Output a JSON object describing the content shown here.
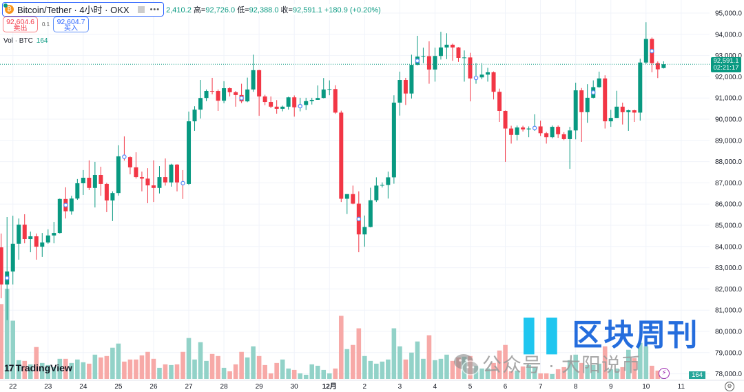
{
  "header": {
    "title": "Bitcoin/Tether · 4小时 · OKX",
    "ohlc_partial_open": "2,410.2",
    "high_label": "高=",
    "high": "92,726.0",
    "low_label": "低=",
    "low": "92,388.0",
    "close_label": "收=",
    "close": "92,591.1",
    "change": "+180.9 (+0.20%)"
  },
  "trade": {
    "sell_price": "92,604.6",
    "sell_label": "卖出",
    "quantity": "0.1",
    "buy_price": "92,604.7",
    "buy_label": "买入"
  },
  "volume_legend": {
    "label": "Vol · BTC",
    "value": "164"
  },
  "price_tag": {
    "price": "92,591.1",
    "countdown": "02:21:17"
  },
  "volume_tag": "164",
  "branding": {
    "logo": "TradingView"
  },
  "watermark": {
    "title": "区块周刊",
    "subtitle": "公众号 · 大阳说币"
  },
  "colors": {
    "up": "#089981",
    "down": "#F23645",
    "volume_up": "#92d2c8",
    "volume_down": "#f7a9a7",
    "marker": "#5b8cf8"
  },
  "chart_data": {
    "type": "candlestick",
    "symbol": "Bitcoin/Tether",
    "interval": "4小时",
    "ylim": [
      78000,
      95000
    ],
    "y_ticks": [
      "95,000.0",
      "94,000.0",
      "93,000.0",
      "92,000.0",
      "91,000.0",
      "90,000.0",
      "89,000.0",
      "88,000.0",
      "87,000.0",
      "86,000.0",
      "85,000.0",
      "84,000.0",
      "83,000.0",
      "82,000.0",
      "81,000.0",
      "80,000.0",
      "79,000.0",
      "78,000.0"
    ],
    "x_ticks": [
      {
        "label": "22",
        "candle": 3
      },
      {
        "label": "23",
        "candle": 9
      },
      {
        "label": "24",
        "candle": 15
      },
      {
        "label": "25",
        "candle": 21
      },
      {
        "label": "26",
        "candle": 27
      },
      {
        "label": "27",
        "candle": 33
      },
      {
        "label": "28",
        "candle": 39
      },
      {
        "label": "29",
        "candle": 45
      },
      {
        "label": "30",
        "candle": 51
      },
      {
        "label": "12月",
        "candle": 57
      },
      {
        "label": "2",
        "candle": 63
      },
      {
        "label": "3",
        "candle": 69
      },
      {
        "label": "4",
        "candle": 75
      },
      {
        "label": "5",
        "candle": 81
      },
      {
        "label": "6",
        "candle": 87
      },
      {
        "label": "7",
        "candle": 93
      },
      {
        "label": "8",
        "candle": 99
      },
      {
        "label": "9",
        "candle": 105
      },
      {
        "label": "10",
        "candle": 111
      },
      {
        "label": "11",
        "candle": 117
      }
    ],
    "grid": true,
    "last_price": 92591.1,
    "markers_on_candles": [
      2,
      12,
      22,
      32,
      42,
      52,
      62,
      72,
      82,
      92,
      102,
      112
    ],
    "candle_fields": [
      "open",
      "high",
      "low",
      "close",
      "volume"
    ],
    "candles": [
      [
        83960,
        84610,
        81560,
        82210,
        3564
      ],
      [
        82210,
        85390,
        80530,
        82820,
        4290
      ],
      [
        82820,
        85450,
        82210,
        84130,
        2772
      ],
      [
        84130,
        85320,
        83380,
        85030,
        891
      ],
      [
        85030,
        85520,
        84150,
        84350,
        858
      ],
      [
        84350,
        84700,
        83730,
        84480,
        693
      ],
      [
        84480,
        84610,
        83380,
        83990,
        1518
      ],
      [
        83990,
        84640,
        83510,
        84190,
        759
      ],
      [
        84190,
        84810,
        84130,
        84520,
        660
      ],
      [
        84520,
        85160,
        84150,
        84640,
        561
      ],
      [
        84640,
        86260,
        84610,
        86240,
        957
      ],
      [
        86240,
        86790,
        85320,
        85660,
        957
      ],
      [
        85660,
        86390,
        85500,
        86260,
        759
      ],
      [
        86260,
        87180,
        86200,
        86980,
        924
      ],
      [
        86980,
        87600,
        86430,
        87240,
        792
      ],
      [
        87240,
        88060,
        86660,
        86760,
        726
      ],
      [
        86760,
        87990,
        85840,
        87370,
        1155
      ],
      [
        87370,
        87760,
        86390,
        86950,
        1023
      ],
      [
        86950,
        87000,
        85620,
        86170,
        1089
      ],
      [
        86170,
        86600,
        85200,
        86520,
        1485
      ],
      [
        86520,
        88770,
        86400,
        88250,
        1683
      ],
      [
        88250,
        89190,
        88050,
        88210,
        825
      ],
      [
        88210,
        88250,
        87400,
        87730,
        924
      ],
      [
        87730,
        88440,
        87200,
        87270,
        924
      ],
      [
        87270,
        87530,
        86600,
        87200,
        1122
      ],
      [
        87200,
        87690,
        86040,
        86880,
        1287
      ],
      [
        86880,
        88060,
        86100,
        86760,
        957
      ],
      [
        86760,
        87790,
        86500,
        87270,
        528
      ],
      [
        87270,
        88150,
        86870,
        87020,
        693
      ],
      [
        87020,
        87900,
        86820,
        87860,
        660
      ],
      [
        87860,
        87880,
        86600,
        87020,
        693
      ],
      [
        87020,
        87600,
        86240,
        86950,
        1287
      ],
      [
        86950,
        90360,
        86900,
        89900,
        1947
      ],
      [
        89900,
        90610,
        89450,
        90450,
        924
      ],
      [
        90450,
        91850,
        90030,
        91000,
        1749
      ],
      [
        91000,
        91400,
        90850,
        91330,
        858
      ],
      [
        91330,
        91950,
        91170,
        91300,
        1188
      ],
      [
        91330,
        91400,
        90390,
        90870,
        1089
      ],
      [
        90870,
        91790,
        90750,
        91460,
        528
      ],
      [
        91460,
        91500,
        91070,
        91270,
        363
      ],
      [
        91270,
        91330,
        90590,
        91140,
        693
      ],
      [
        91140,
        91670,
        90760,
        90840,
        1287
      ],
      [
        90840,
        91960,
        90800,
        91400,
        1023
      ],
      [
        91400,
        93040,
        91290,
        92310,
        1551
      ],
      [
        92310,
        92330,
        90160,
        91070,
        1089
      ],
      [
        91070,
        91150,
        90660,
        90810,
        660
      ],
      [
        90810,
        91070,
        90520,
        90590,
        264
      ],
      [
        90590,
        90900,
        90260,
        90490,
        759
      ],
      [
        90490,
        90640,
        90370,
        90590,
        924
      ],
      [
        90590,
        91060,
        90450,
        91030,
        495
      ],
      [
        91030,
        91120,
        90120,
        90560,
        429
      ],
      [
        90560,
        91010,
        90370,
        90670,
        264
      ],
      [
        90670,
        91010,
        90430,
        90850,
        198
      ],
      [
        90850,
        91010,
        90690,
        90910,
        693
      ],
      [
        90910,
        91590,
        90910,
        91000,
        627
      ],
      [
        91000,
        91940,
        90980,
        91400,
        429
      ],
      [
        91400,
        91830,
        91130,
        91420,
        264
      ],
      [
        91420,
        91600,
        90250,
        90310,
        495
      ],
      [
        90310,
        90400,
        86100,
        86250,
        3003
      ],
      [
        86250,
        86470,
        85530,
        86470,
        1419
      ],
      [
        86470,
        86870,
        85990,
        86020,
        1617
      ],
      [
        86020,
        86600,
        83730,
        84570,
        2409
      ],
      [
        84570,
        85460,
        83990,
        84920,
        1089
      ],
      [
        84920,
        86770,
        84900,
        86180,
        858
      ],
      [
        86180,
        87260,
        86100,
        86870,
        726
      ],
      [
        86870,
        87020,
        86780,
        86900,
        825
      ],
      [
        86900,
        87530,
        86260,
        87260,
        924
      ],
      [
        87260,
        91130,
        86960,
        90780,
        2409
      ],
      [
        90780,
        92240,
        90170,
        91850,
        1551
      ],
      [
        91850,
        91950,
        90670,
        91210,
        924
      ],
      [
        91210,
        93040,
        90970,
        92560,
        1254
      ],
      [
        92560,
        93930,
        92540,
        92950,
        1782
      ],
      [
        92950,
        93370,
        92640,
        92970,
        957
      ],
      [
        92970,
        93670,
        91670,
        92340,
        2079
      ],
      [
        92340,
        93370,
        91770,
        92980,
        891
      ],
      [
        92980,
        94120,
        92810,
        93380,
        957
      ],
      [
        93380,
        94050,
        92830,
        93510,
        1155
      ],
      [
        93510,
        93560,
        92750,
        93380,
        858
      ],
      [
        93380,
        93400,
        92700,
        92890,
        1023
      ],
      [
        92890,
        93240,
        91770,
        92910,
        1056
      ],
      [
        92910,
        93130,
        90840,
        91920,
        1089
      ],
      [
        91920,
        92640,
        91670,
        91970,
        627
      ],
      [
        91970,
        92640,
        91880,
        92100,
        495
      ],
      [
        92100,
        92420,
        91770,
        92210,
        495
      ],
      [
        92210,
        92250,
        90930,
        91290,
        759
      ],
      [
        91290,
        91440,
        89870,
        90390,
        1353
      ],
      [
        90390,
        90410,
        87990,
        89560,
        1617
      ],
      [
        89560,
        89690,
        88850,
        89260,
        363
      ],
      [
        89260,
        89700,
        89000,
        89610,
        396
      ],
      [
        89610,
        89690,
        89420,
        89520,
        594
      ],
      [
        89520,
        89660,
        89150,
        89560,
        660
      ],
      [
        89560,
        90230,
        89450,
        89610,
        561
      ],
      [
        89660,
        89930,
        89210,
        89340,
        264
      ],
      [
        89340,
        89400,
        88850,
        89150,
        264
      ],
      [
        89150,
        89700,
        89100,
        89640,
        231
      ],
      [
        89640,
        89700,
        89120,
        89290,
        462
      ],
      [
        89290,
        89390,
        89010,
        89060,
        561
      ],
      [
        89060,
        89640,
        87660,
        89470,
        891
      ],
      [
        89470,
        91720,
        89050,
        91360,
        1155
      ],
      [
        91360,
        91470,
        88930,
        90330,
        759
      ],
      [
        90330,
        91650,
        89830,
        91010,
        660
      ],
      [
        91010,
        91830,
        90980,
        91510,
        660
      ],
      [
        91510,
        92240,
        91480,
        91920,
        726
      ],
      [
        91920,
        92070,
        89560,
        89900,
        1551
      ],
      [
        89900,
        90440,
        89640,
        90060,
        462
      ],
      [
        90060,
        91340,
        90060,
        90590,
        495
      ],
      [
        90590,
        90780,
        89750,
        90330,
        561
      ],
      [
        90330,
        90450,
        89450,
        90420,
        1386
      ],
      [
        90420,
        90450,
        89870,
        90310,
        990
      ],
      [
        90310,
        92850,
        89930,
        92670,
        1716
      ],
      [
        92670,
        94570,
        92600,
        93780,
        1551
      ],
      [
        93780,
        93850,
        92210,
        92640,
        627
      ],
      [
        92640,
        92720,
        91940,
        92350,
        396
      ],
      [
        92410.2,
        92726.0,
        92388.0,
        92591.1,
        164
      ]
    ]
  }
}
